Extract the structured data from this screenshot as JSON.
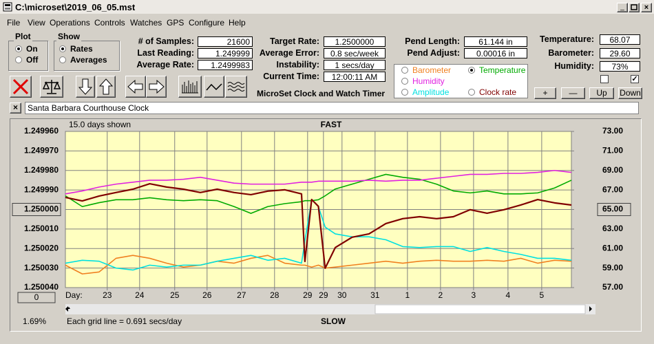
{
  "window": {
    "title": "C:\\microset\\2019_06_05.mst"
  },
  "menu": [
    "File",
    "View",
    "Operations",
    "Controls",
    "Watches",
    "GPS",
    "Configure",
    "Help"
  ],
  "plot": {
    "label": "Plot",
    "options": [
      "On",
      "Off"
    ],
    "checked": [
      true,
      false
    ]
  },
  "show": {
    "label": "Show",
    "options": [
      "Rates",
      "Averages"
    ],
    "checked": [
      true,
      false
    ]
  },
  "fields": [
    [
      {
        "label": "# of Samples:",
        "value": "21600"
      },
      {
        "label": "Last Reading:",
        "value": "1.249999"
      },
      {
        "label": "Average Rate:",
        "value": "1.2499983"
      }
    ],
    [
      {
        "label": "Target Rate:",
        "value": "1.2500000"
      },
      {
        "label": "Average Error:",
        "value": "0.8 sec/week"
      },
      {
        "label": "Instability:",
        "value": "1 secs/day"
      },
      {
        "label": "Current Time:",
        "value": "12:00:11 AM"
      }
    ],
    [
      {
        "label": "Pend Length:",
        "value": "61.144 in"
      },
      {
        "label": "Pend Adjust:",
        "value": "0.00016 in"
      }
    ],
    [
      {
        "label": "Temperature:",
        "value": "68.07"
      },
      {
        "label": "Barometer:",
        "value": "29.60"
      },
      {
        "label": "Humidity:",
        "value": "73%"
      }
    ]
  ],
  "checkboxes": [
    false,
    true
  ],
  "app_label": "MicroSet Clock and Watch Timer",
  "adjust_buttons": [
    "+",
    "—",
    "Up",
    "Down"
  ],
  "clock_name": "Santa Barbara Courthouse Clock",
  "chart_data": {
    "type": "line",
    "top_label": "FAST",
    "bottom_label": "SLOW",
    "days_shown": "15.0 days shown",
    "x_axis_label": "Day:",
    "footnote": "Each grid line = 0.691 secs/day",
    "corner_value": "1.69%",
    "offset_button": "0",
    "grid": true,
    "xlim": [
      0,
      15
    ],
    "xticks": [
      {
        "value": 1.24,
        "label": "23"
      },
      {
        "value": 2.2,
        "label": "24"
      },
      {
        "value": 3.24,
        "label": "25"
      },
      {
        "value": 4.2,
        "label": "26"
      },
      {
        "value": 5.22,
        "label": "27"
      },
      {
        "value": 6.2,
        "label": "28"
      },
      {
        "value": 7.18,
        "label": "29"
      },
      {
        "value": 7.65,
        "label": "29"
      },
      {
        "value": 8.2,
        "label": "30"
      },
      {
        "value": 9.18,
        "label": "31"
      },
      {
        "value": 10.14,
        "label": "1"
      },
      {
        "value": 11.12,
        "label": "2"
      },
      {
        "value": 12.1,
        "label": "3"
      },
      {
        "value": 13.12,
        "label": "4"
      },
      {
        "value": 14.12,
        "label": "5"
      }
    ],
    "ylim": [
      1.25004,
      1.24996
    ],
    "yticks": [
      {
        "value": 1.24996,
        "label": "1.249960"
      },
      {
        "value": 1.24997,
        "label": "1.249970"
      },
      {
        "value": 1.24998,
        "label": "1.249980"
      },
      {
        "value": 1.24999,
        "label": "1.249990"
      },
      {
        "value": 1.25,
        "label": "1.250000"
      },
      {
        "value": 1.25001,
        "label": "1.250010"
      },
      {
        "value": 1.25002,
        "label": "1.250020"
      },
      {
        "value": 1.25003,
        "label": "1.250030"
      },
      {
        "value": 1.25004,
        "label": "1.250040"
      }
    ],
    "y2lim": [
      57,
      73
    ],
    "y2ticks": [
      {
        "value": 73,
        "label": "73.00"
      },
      {
        "value": 71,
        "label": "71.00"
      },
      {
        "value": 69,
        "label": "69.00"
      },
      {
        "value": 67,
        "label": "67.00"
      },
      {
        "value": 65,
        "label": "65.00"
      },
      {
        "value": 63,
        "label": "63.00"
      },
      {
        "value": 61,
        "label": "61.00"
      },
      {
        "value": 59,
        "label": "59.00"
      },
      {
        "value": 57,
        "label": "57.00"
      }
    ],
    "x": [
      0,
      0.5,
      1,
      1.5,
      2,
      2.5,
      3,
      3.5,
      4,
      4.5,
      5,
      5.5,
      6,
      6.5,
      7,
      7.1,
      7.3,
      7.5,
      7.7,
      8,
      8.5,
      9,
      9.5,
      10,
      10.5,
      11,
      11.5,
      12,
      12.5,
      13,
      13.5,
      14,
      14.5,
      15
    ],
    "series": [
      {
        "name": "Barometer",
        "color": "#f08020",
        "axis": "y2",
        "values": [
          59.3,
          58.4,
          58.6,
          60.0,
          60.3,
          60.0,
          59.5,
          59.1,
          59.3,
          59.7,
          59.5,
          60.0,
          60.3,
          59.5,
          59.3,
          59.3,
          59.1,
          59.3,
          59.0,
          59.1,
          59.3,
          59.5,
          59.7,
          59.5,
          59.7,
          59.8,
          59.7,
          59.7,
          59.8,
          59.7,
          60.0,
          59.5,
          59.8,
          59.7
        ]
      },
      {
        "name": "Temperature",
        "color": "#00aa00",
        "axis": "y2",
        "checked": true,
        "values": [
          66.4,
          65.3,
          65.7,
          66.0,
          66.0,
          66.2,
          66.0,
          65.9,
          66.0,
          65.9,
          65.3,
          64.6,
          65.3,
          65.6,
          65.8,
          65.9,
          65.9,
          66.0,
          66.4,
          67.1,
          67.6,
          68.1,
          68.6,
          68.3,
          68.1,
          67.6,
          66.9,
          66.7,
          66.9,
          66.6,
          66.6,
          66.7,
          67.2,
          68.0
        ]
      },
      {
        "name": "Humidity",
        "color": "#e020e0",
        "axis": "y2",
        "values": [
          66.6,
          66.9,
          67.3,
          67.6,
          67.8,
          68.0,
          68.0,
          68.1,
          68.3,
          68.0,
          67.7,
          67.6,
          67.6,
          67.6,
          67.8,
          67.8,
          67.8,
          67.9,
          67.9,
          67.9,
          67.9,
          68.0,
          67.9,
          68.0,
          68.0,
          68.2,
          68.4,
          68.6,
          68.6,
          68.7,
          68.7,
          68.8,
          69.0,
          68.8
        ]
      },
      {
        "name": "Amplitude",
        "color": "#00e0e0",
        "axis": "y2",
        "values": [
          59.5,
          59.8,
          59.7,
          59.0,
          58.8,
          59.3,
          59.1,
          59.3,
          59.3,
          59.7,
          60.0,
          60.3,
          59.8,
          60.0,
          59.5,
          61.8,
          66.0,
          65.3,
          63.2,
          62.5,
          62.2,
          62.2,
          61.9,
          61.2,
          61.1,
          61.2,
          61.2,
          60.7,
          61.1,
          60.7,
          60.4,
          60.0,
          60.0,
          59.8
        ]
      },
      {
        "name": "Clock rate",
        "color": "#800000",
        "values": [
          1.2499938,
          1.2499956,
          1.2499931,
          1.2499913,
          1.2499896,
          1.2499868,
          1.2499885,
          1.2499896,
          1.2499913,
          1.2499896,
          1.2499913,
          1.2499924,
          1.2499906,
          1.2499899,
          1.249992,
          1.2500266,
          1.2499949,
          1.2499984,
          1.2500301,
          1.2500195,
          1.2500142,
          1.2500125,
          1.2500072,
          1.2500047,
          1.2500037,
          1.2500047,
          1.2500037,
          1.2500001,
          1.2500019,
          1.2500001,
          1.2499977,
          1.2499949,
          1.2499966,
          1.2499977
        ]
      }
    ]
  }
}
